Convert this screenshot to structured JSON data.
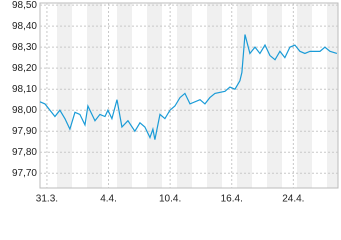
{
  "chart_data": {
    "type": "line",
    "x": [
      -0.45,
      -0.13,
      0.52,
      0.84,
      1.17,
      1.49,
      1.82,
      2.14,
      2.47,
      2.66,
      3.12,
      3.44,
      3.77,
      3.96,
      4.22,
      4.55,
      4.87,
      5.26,
      5.71,
      6.04,
      6.36,
      6.69,
      6.88,
      7.01,
      7.34,
      7.66,
      7.99,
      8.31,
      8.64,
      8.96,
      9.29,
      9.94,
      10.26,
      10.58,
      10.91,
      11.56,
      11.88,
      12.21,
      12.53,
      12.66,
      12.86,
      13.18,
      13.51,
      13.83,
      14.16,
      14.48,
      14.81,
      15.13,
      15.45,
      15.78,
      16.1,
      16.43,
      16.75,
      17.08,
      17.73,
      18.05,
      18.38,
      18.83
    ],
    "values": [
      98.04,
      98.03,
      97.97,
      98.0,
      97.96,
      97.91,
      97.99,
      97.98,
      97.93,
      98.02,
      97.95,
      97.98,
      97.97,
      98.0,
      97.96,
      98.05,
      97.92,
      97.95,
      97.9,
      97.94,
      97.92,
      97.87,
      97.91,
      97.86,
      97.98,
      97.96,
      98.0,
      98.02,
      98.06,
      98.08,
      98.03,
      98.05,
      98.03,
      98.06,
      98.08,
      98.09,
      98.11,
      98.1,
      98.14,
      98.18,
      98.36,
      98.27,
      98.3,
      98.27,
      98.31,
      98.26,
      98.24,
      98.28,
      98.25,
      98.3,
      98.31,
      98.28,
      98.27,
      98.28,
      98.28,
      98.3,
      98.28,
      98.27
    ],
    "color": "#1a9bd7",
    "xlim": [
      -0.45,
      18.9
    ],
    "xticks": [
      {
        "value": 0,
        "label": "31.3."
      },
      {
        "value": 4,
        "label": "4.4."
      },
      {
        "value": 8,
        "label": "10.4."
      },
      {
        "value": 12,
        "label": "16.4."
      },
      {
        "value": 16,
        "label": "24.4."
      }
    ],
    "ylim": [
      97.63,
      98.51
    ],
    "yticks": [
      {
        "value": 97.7,
        "label": "97,70"
      },
      {
        "value": 97.8,
        "label": "97,80"
      },
      {
        "value": 97.9,
        "label": "97,90"
      },
      {
        "value": 98.0,
        "label": "98,00"
      },
      {
        "value": 98.1,
        "label": "98,10"
      },
      {
        "value": 98.2,
        "label": "98,20"
      },
      {
        "value": 98.3,
        "label": "98,30"
      },
      {
        "value": 98.4,
        "label": "98,40"
      },
      {
        "value": 98.5,
        "label": "98,50"
      }
    ],
    "grid": true
  }
}
